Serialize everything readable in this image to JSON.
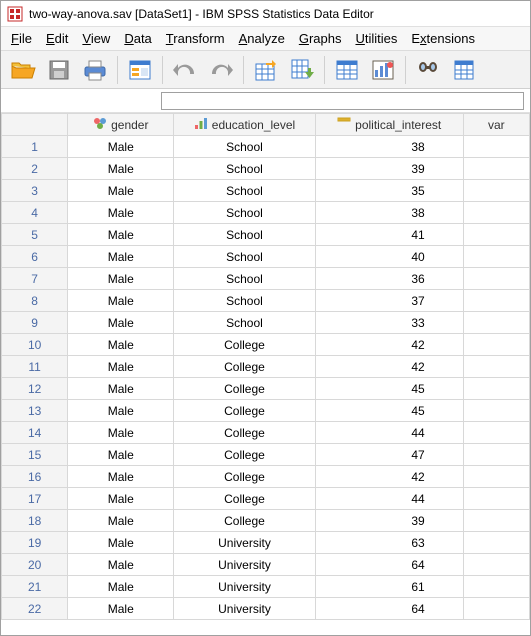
{
  "window": {
    "title": "two-way-anova.sav [DataSet1] - IBM SPSS Statistics Data Editor"
  },
  "menu": {
    "file": "File",
    "edit": "Edit",
    "view": "View",
    "data": "Data",
    "transform": "Transform",
    "analyze": "Analyze",
    "graphs": "Graphs",
    "utilities": "Utilities",
    "extensions": "Extensions"
  },
  "toolbar": {
    "icons": {
      "open": "open-folder-icon",
      "save": "save-icon",
      "print": "print-icon",
      "recall": "recall-dialog-icon",
      "undo": "undo-icon",
      "redo": "redo-icon",
      "goto_case": "goto-case-icon",
      "goto_var": "goto-variable-icon",
      "variables": "variables-icon",
      "run": "run-descriptives-icon",
      "find": "find-icon",
      "insert": "insert-cases-icon"
    },
    "colors": {
      "folder": "#f6a623",
      "folder_flap": "#e08e00",
      "disk": "#7a7a7a",
      "printer": "#5b8bd4",
      "grid_blue": "#3e7ccf",
      "grid_orange": "#f6a623",
      "arrow_gray": "#8a8a8a",
      "chart_blue": "#3e7ccf",
      "chart_accent": "#e55",
      "binocular": "#5a4a3a"
    }
  },
  "search": {
    "value": ""
  },
  "columns": [
    {
      "key": "gender",
      "label": "gender",
      "icon": "nominal"
    },
    {
      "key": "education_level",
      "label": "education_level",
      "icon": "ordinal"
    },
    {
      "key": "political_interest",
      "label": "political_interest",
      "icon": "scale"
    },
    {
      "key": "var",
      "label": "var",
      "icon": ""
    }
  ],
  "icon_colors": {
    "nominal": {
      "a": "#e66",
      "b": "#5b9bd5",
      "c": "#70ad47"
    },
    "ordinal": {
      "a": "#e66",
      "b": "#5b9bd5",
      "c": "#70ad47"
    },
    "scale": "#f3c13a"
  },
  "rows": [
    {
      "n": 1,
      "gender": "Male",
      "education_level": "School",
      "political_interest": 38
    },
    {
      "n": 2,
      "gender": "Male",
      "education_level": "School",
      "political_interest": 39
    },
    {
      "n": 3,
      "gender": "Male",
      "education_level": "School",
      "political_interest": 35
    },
    {
      "n": 4,
      "gender": "Male",
      "education_level": "School",
      "political_interest": 38
    },
    {
      "n": 5,
      "gender": "Male",
      "education_level": "School",
      "political_interest": 41
    },
    {
      "n": 6,
      "gender": "Male",
      "education_level": "School",
      "political_interest": 40
    },
    {
      "n": 7,
      "gender": "Male",
      "education_level": "School",
      "political_interest": 36
    },
    {
      "n": 8,
      "gender": "Male",
      "education_level": "School",
      "political_interest": 37
    },
    {
      "n": 9,
      "gender": "Male",
      "education_level": "School",
      "political_interest": 33
    },
    {
      "n": 10,
      "gender": "Male",
      "education_level": "College",
      "political_interest": 42
    },
    {
      "n": 11,
      "gender": "Male",
      "education_level": "College",
      "political_interest": 42
    },
    {
      "n": 12,
      "gender": "Male",
      "education_level": "College",
      "political_interest": 45
    },
    {
      "n": 13,
      "gender": "Male",
      "education_level": "College",
      "political_interest": 45
    },
    {
      "n": 14,
      "gender": "Male",
      "education_level": "College",
      "political_interest": 44
    },
    {
      "n": 15,
      "gender": "Male",
      "education_level": "College",
      "political_interest": 47
    },
    {
      "n": 16,
      "gender": "Male",
      "education_level": "College",
      "political_interest": 42
    },
    {
      "n": 17,
      "gender": "Male",
      "education_level": "College",
      "political_interest": 44
    },
    {
      "n": 18,
      "gender": "Male",
      "education_level": "College",
      "political_interest": 39
    },
    {
      "n": 19,
      "gender": "Male",
      "education_level": "University",
      "political_interest": 63
    },
    {
      "n": 20,
      "gender": "Male",
      "education_level": "University",
      "political_interest": 64
    },
    {
      "n": 21,
      "gender": "Male",
      "education_level": "University",
      "political_interest": 61
    },
    {
      "n": 22,
      "gender": "Male",
      "education_level": "University",
      "political_interest": 64
    }
  ]
}
